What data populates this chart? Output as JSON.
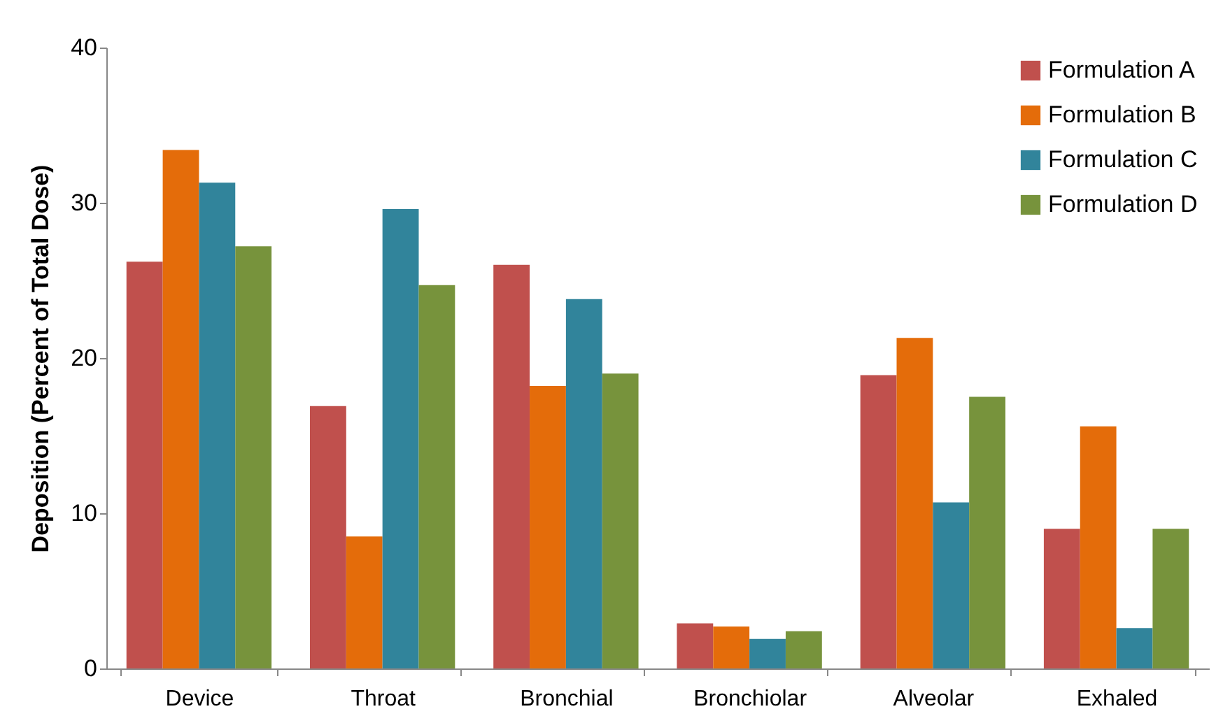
{
  "chart_data": {
    "type": "bar",
    "ylabel": "Deposition (Percent of Total Dose)",
    "categories": [
      "Device",
      "Throat",
      "Bronchial",
      "Bronchiolar",
      "Alveolar",
      "Exhaled"
    ],
    "series": [
      {
        "name": "Formulation A",
        "color": "#c0504d",
        "values": [
          26.2,
          16.9,
          26.0,
          2.9,
          18.9,
          9.0
        ]
      },
      {
        "name": "Formulation B",
        "color": "#e46c0a",
        "values": [
          33.4,
          8.5,
          18.2,
          2.7,
          21.3,
          15.6
        ]
      },
      {
        "name": "Formulation C",
        "color": "#31849b",
        "values": [
          31.3,
          29.6,
          23.8,
          1.9,
          10.7,
          2.6
        ]
      },
      {
        "name": "Formulation D",
        "color": "#77933c",
        "values": [
          27.2,
          24.7,
          19.0,
          2.4,
          17.5,
          9.0
        ]
      }
    ],
    "ylim": [
      0,
      40
    ],
    "yticks": [
      0,
      10,
      20,
      30,
      40
    ],
    "grid": false,
    "legend": "top right"
  }
}
